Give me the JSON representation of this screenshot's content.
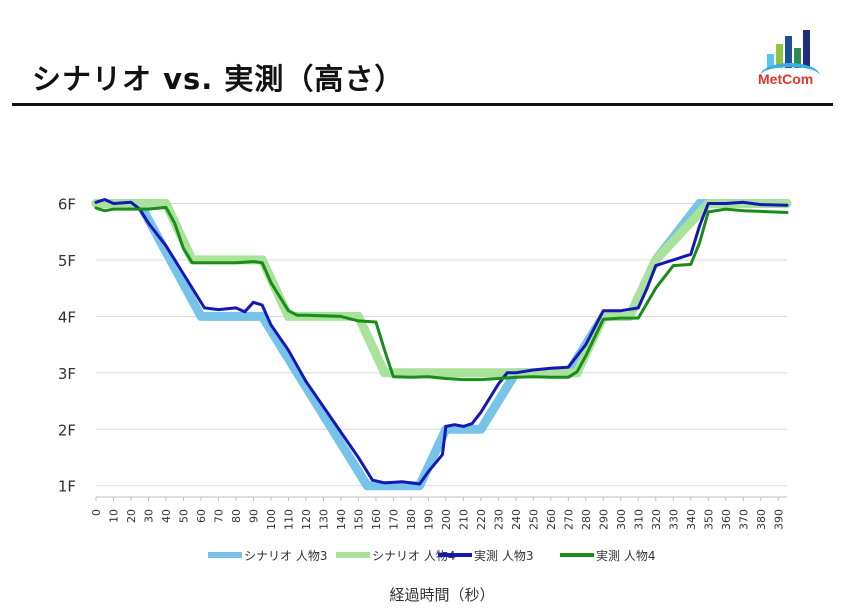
{
  "page": {
    "title": "シナリオ vs. 実測（高さ）"
  },
  "logo": {
    "text": "MetCom",
    "colors": [
      "#5bc4ea",
      "#8cc63f",
      "#1f4e9c",
      "#2e8b57",
      "#1f2d7a"
    ]
  },
  "chart_data": {
    "type": "line",
    "title": "シナリオ vs. 実測（高さ）",
    "xlabel": "経過時間（秒）",
    "ylabel": "",
    "xlim": [
      0,
      395
    ],
    "ylim": [
      0.8,
      6.15
    ],
    "x_ticks": [
      0,
      10,
      20,
      30,
      40,
      50,
      60,
      70,
      80,
      90,
      100,
      110,
      120,
      130,
      140,
      150,
      160,
      170,
      180,
      190,
      200,
      210,
      220,
      230,
      240,
      250,
      260,
      270,
      280,
      290,
      300,
      310,
      320,
      330,
      340,
      350,
      360,
      370,
      380,
      390
    ],
    "y_ticks": [
      {
        "value": 1,
        "label": "1F"
      },
      {
        "value": 2,
        "label": "2F"
      },
      {
        "value": 3,
        "label": "3F"
      },
      {
        "value": 4,
        "label": "4F"
      },
      {
        "value": 5,
        "label": "5F"
      },
      {
        "value": 6,
        "label": "6F"
      }
    ],
    "grid": true,
    "legend_position": "bottom",
    "series": [
      {
        "name": "シナリオ 人物3",
        "color": "#78c3ea",
        "width": 9,
        "x": [
          0,
          25,
          60,
          85,
          95,
          155,
          185,
          200,
          220,
          240,
          270,
          290,
          305,
          320,
          345,
          395
        ],
        "y": [
          6,
          6,
          4,
          4,
          4,
          1,
          1,
          2,
          2,
          3,
          3,
          4,
          4,
          5,
          6,
          6
        ]
      },
      {
        "name": "シナリオ 人物4",
        "color": "#a9e29a",
        "width": 9,
        "x": [
          0,
          40,
          55,
          95,
          110,
          150,
          165,
          240,
          275,
          290,
          305,
          320,
          350,
          395
        ],
        "y": [
          6,
          6,
          5,
          5,
          4,
          4,
          3,
          3,
          3,
          4,
          4,
          5,
          6,
          6
        ]
      },
      {
        "name": "実測 人物3",
        "color": "#1518b4",
        "width": 3,
        "x": [
          0,
          5,
          10,
          20,
          25,
          30,
          40,
          50,
          60,
          62,
          70,
          80,
          85,
          90,
          95,
          100,
          110,
          120,
          130,
          140,
          150,
          158,
          165,
          175,
          185,
          190,
          198,
          200,
          205,
          210,
          215,
          220,
          225,
          230,
          235,
          240,
          250,
          260,
          270,
          280,
          290,
          300,
          310,
          315,
          320,
          330,
          340,
          345,
          350,
          360,
          370,
          380,
          395
        ],
        "y": [
          6.02,
          6.07,
          6.0,
          6.02,
          5.9,
          5.65,
          5.25,
          4.75,
          4.25,
          4.15,
          4.12,
          4.15,
          4.08,
          4.25,
          4.2,
          3.85,
          3.4,
          2.85,
          2.4,
          1.95,
          1.5,
          1.1,
          1.05,
          1.07,
          1.03,
          1.25,
          1.55,
          2.05,
          2.08,
          2.05,
          2.1,
          2.3,
          2.55,
          2.8,
          3.0,
          3.0,
          3.05,
          3.08,
          3.1,
          3.5,
          4.1,
          4.1,
          4.15,
          4.5,
          4.9,
          5.0,
          5.1,
          5.6,
          6.0,
          6.0,
          6.02,
          5.98,
          5.97
        ]
      },
      {
        "name": "実測 人物4",
        "color": "#1a8c1a",
        "width": 3,
        "x": [
          0,
          5,
          10,
          20,
          30,
          40,
          45,
          50,
          55,
          60,
          70,
          80,
          90,
          95,
          100,
          110,
          115,
          120,
          140,
          150,
          160,
          165,
          170,
          180,
          190,
          200,
          210,
          220,
          230,
          240,
          250,
          260,
          270,
          275,
          280,
          290,
          300,
          310,
          320,
          330,
          340,
          345,
          350,
          360,
          370,
          380,
          395
        ],
        "y": [
          5.92,
          5.87,
          5.9,
          5.9,
          5.9,
          5.93,
          5.65,
          5.2,
          4.95,
          4.95,
          4.95,
          4.95,
          4.97,
          4.95,
          4.6,
          4.1,
          4.02,
          4.02,
          4.0,
          3.92,
          3.9,
          3.4,
          2.93,
          2.92,
          2.93,
          2.9,
          2.88,
          2.88,
          2.9,
          2.92,
          2.93,
          2.92,
          2.92,
          3.02,
          3.3,
          3.95,
          3.97,
          3.97,
          4.5,
          4.9,
          4.92,
          5.3,
          5.85,
          5.9,
          5.87,
          5.86,
          5.84
        ]
      }
    ]
  }
}
